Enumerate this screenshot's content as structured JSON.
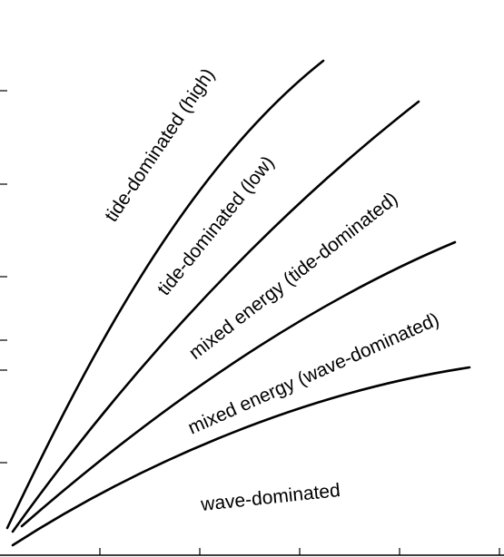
{
  "zone_labels": {
    "tide_high": "tide-dominated (high)",
    "tide_low": "tide-dominated (low)",
    "mixed_tide": "mixed energy (tide-dominated)",
    "mixed_wave": "mixed energy (wave-dominated)",
    "wave": "wave-dominated"
  },
  "colors": {
    "line": "#000000",
    "background": "#ffffff"
  }
}
